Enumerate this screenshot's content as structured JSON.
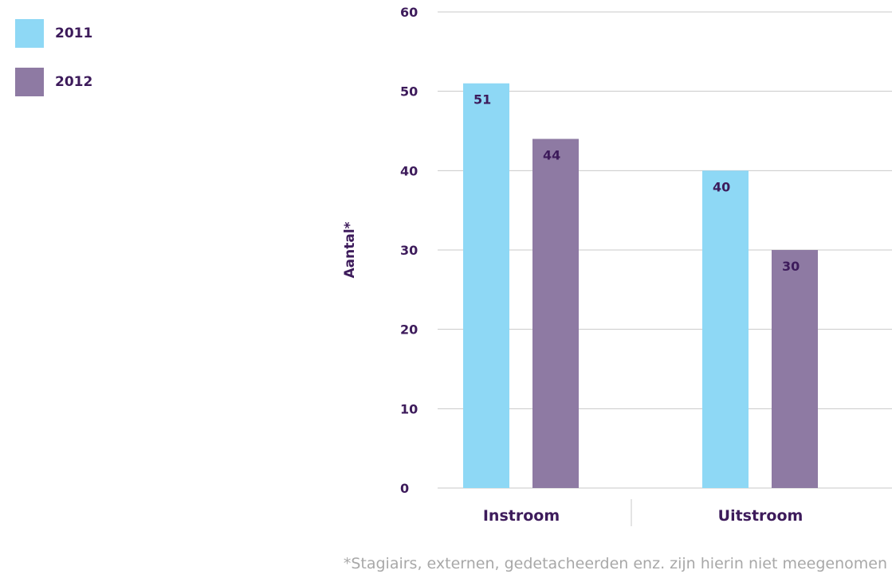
{
  "chart_data": {
    "type": "bar",
    "categories": [
      "Instroom",
      "Uitstroom"
    ],
    "series": [
      {
        "name": "2011",
        "values": [
          51,
          40
        ],
        "data_labels": [
          "51",
          "40"
        ]
      },
      {
        "name": "2012",
        "values": [
          44,
          30
        ],
        "data_labels": [
          "44",
          "30"
        ]
      }
    ],
    "ylabel": "Aantal*",
    "ylim": [
      0,
      60
    ],
    "yticks": [
      0,
      10,
      20,
      30,
      40,
      50,
      60
    ],
    "grid": true,
    "legend_position": "top-left"
  },
  "colors": {
    "2011": "#8ed8f5",
    "2012": "#8e7aa3",
    "text": "#3d1b5b",
    "grid": "#c8c8c8"
  },
  "footnote": "*Stagiairs, externen, gedetacheerden enz. zijn hierin niet meegenomen"
}
